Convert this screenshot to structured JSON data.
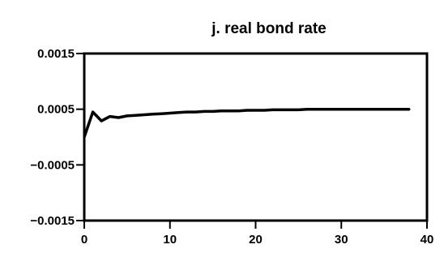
{
  "chart_data": {
    "type": "line",
    "title": "j.  real bond rate",
    "xlabel": "",
    "ylabel": "",
    "xlim": [
      0,
      40
    ],
    "ylim": [
      -0.0015,
      0.0015
    ],
    "xticks": [
      0,
      10,
      20,
      30,
      40
    ],
    "xtick_labels": [
      "0",
      "10",
      "20",
      "30",
      "40"
    ],
    "yticks": [
      0.0015,
      0.0005,
      -0.0005,
      -0.0015
    ],
    "ytick_labels": [
      "0.0015",
      "0.0005",
      "−0.0005",
      "−0.0015"
    ],
    "grid": false,
    "series": [
      {
        "color": "#000000",
        "x": [
          0,
          1,
          2,
          3,
          4,
          5,
          6,
          7,
          8,
          9,
          10,
          11,
          12,
          13,
          14,
          15,
          16,
          17,
          18,
          19,
          20,
          21,
          22,
          23,
          24,
          25,
          26,
          27,
          28,
          29,
          30,
          31,
          32,
          33,
          34,
          35,
          36,
          37,
          38
        ],
        "y": [
          0.0,
          0.00045,
          0.00029,
          0.00037,
          0.00035,
          0.00038,
          0.00039,
          0.0004,
          0.00041,
          0.00042,
          0.00043,
          0.00044,
          0.00045,
          0.00045,
          0.00046,
          0.00046,
          0.00047,
          0.00047,
          0.00047,
          0.00048,
          0.00048,
          0.00048,
          0.00049,
          0.00049,
          0.00049,
          0.00049,
          0.0005,
          0.0005,
          0.0005,
          0.0005,
          0.0005,
          0.0005,
          0.0005,
          0.0005,
          0.0005,
          0.0005,
          0.0005,
          0.0005,
          0.0005
        ]
      }
    ]
  }
}
